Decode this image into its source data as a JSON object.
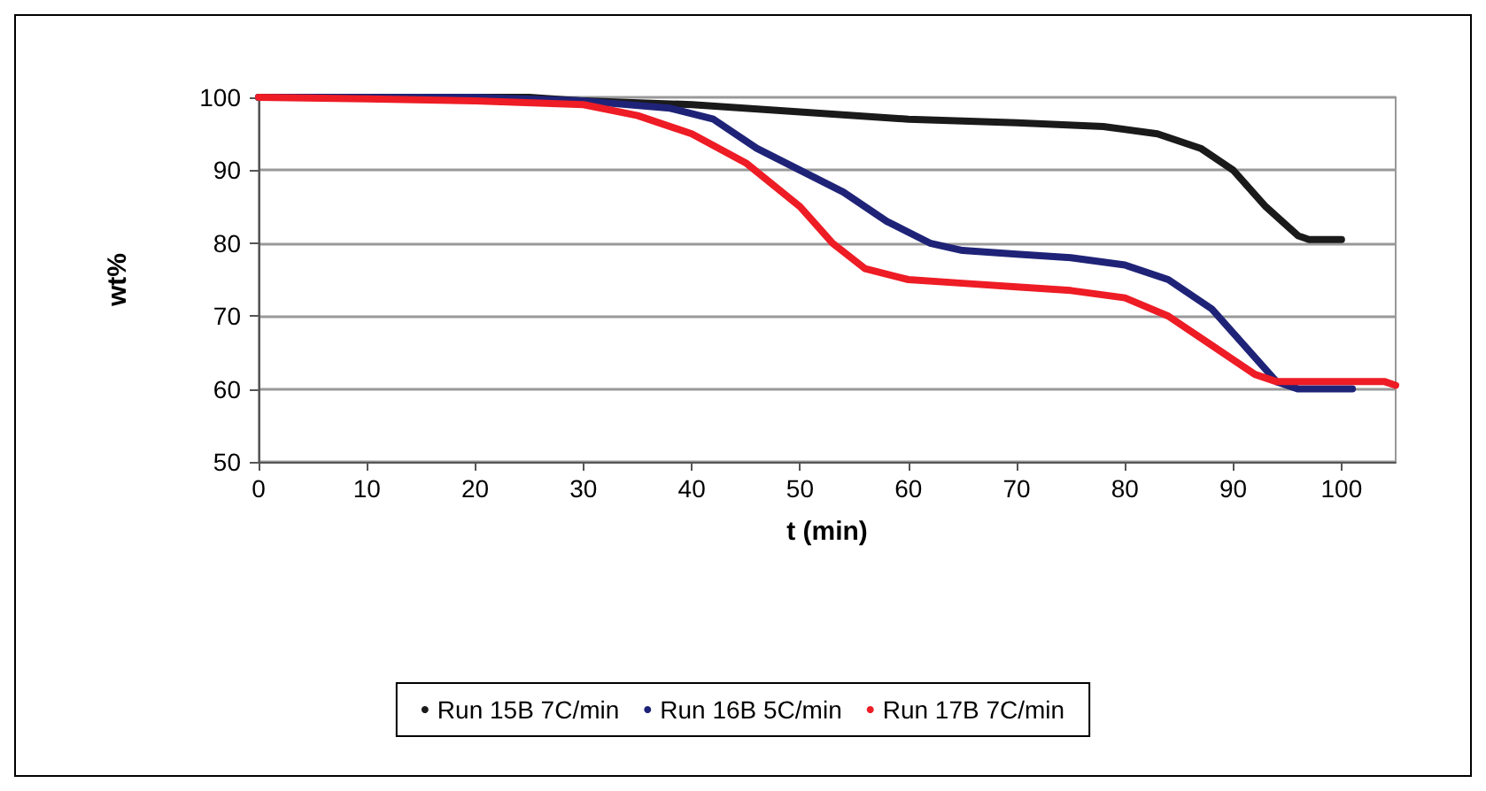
{
  "chart_data": {
    "type": "line",
    "xlabel": "t (min)",
    "ylabel": "wt%",
    "xlim": [
      0,
      105
    ],
    "xticks": [
      0,
      10,
      20,
      30,
      40,
      50,
      60,
      70,
      80,
      90,
      100
    ],
    "ylim": [
      50,
      100
    ],
    "yticks": [
      50,
      60,
      70,
      80,
      90,
      100
    ],
    "grid": "y",
    "legend": "bottom",
    "marker": "none",
    "line_style": "solid",
    "series": [
      {
        "name": "Run 15B 7C/min",
        "color": "#1a1a1a",
        "x": [
          0,
          25,
          30,
          40,
          50,
          60,
          70,
          78,
          83,
          87,
          90,
          93,
          96,
          97,
          100
        ],
        "values": [
          100,
          100,
          99.5,
          99,
          98,
          97,
          96.5,
          96,
          95,
          93,
          90,
          85,
          81,
          80.5,
          80.5
        ]
      },
      {
        "name": "Run 16B 5C/min",
        "color": "#1f2377",
        "x": [
          0,
          20,
          30,
          38,
          42,
          46,
          50,
          54,
          58,
          62,
          65,
          70,
          75,
          80,
          84,
          88,
          91,
          94,
          96,
          101
        ],
        "values": [
          100,
          100,
          99.5,
          98.5,
          97,
          93,
          90,
          87,
          83,
          80,
          79,
          78.5,
          78,
          77,
          75,
          71,
          66,
          61,
          60,
          60
        ]
      },
      {
        "name": "Run 17B 7C/min",
        "color": "#ee1c25",
        "x": [
          0,
          10,
          20,
          30,
          35,
          40,
          45,
          50,
          53,
          56,
          60,
          65,
          70,
          75,
          80,
          84,
          88,
          92,
          94,
          100,
          104,
          105
        ],
        "values": [
          100,
          99.8,
          99.5,
          99,
          97.5,
          95,
          91,
          85,
          80,
          76.5,
          75,
          74.5,
          74,
          73.5,
          72.5,
          70,
          66,
          62,
          61,
          61,
          61,
          60.5
        ]
      }
    ]
  }
}
